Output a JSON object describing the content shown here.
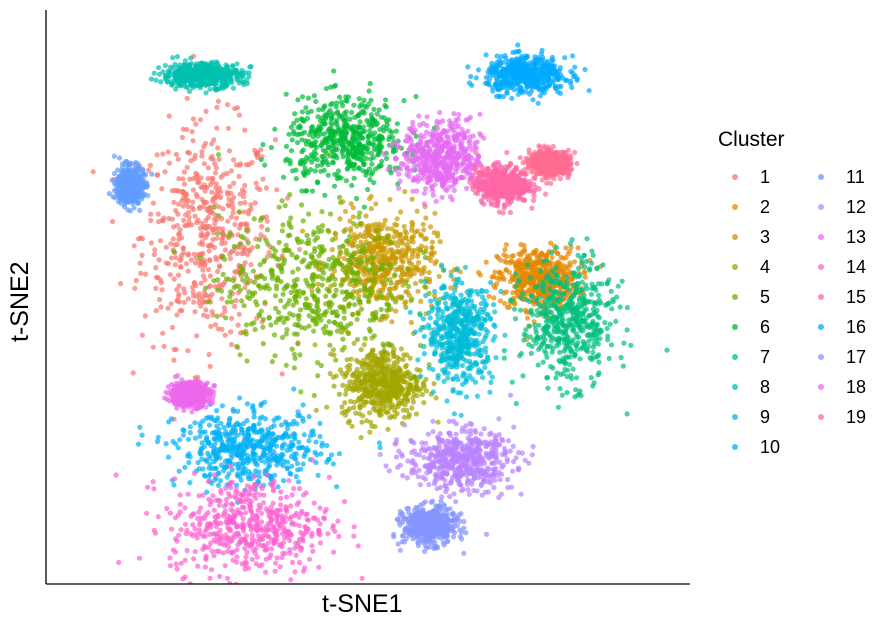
{
  "chart_data": {
    "type": "scatter",
    "title": "",
    "xlabel": "t-SNE1",
    "ylabel": "t-SNE2",
    "grid": false,
    "legend_position": "right",
    "legend_title": "Cluster",
    "xlim": [
      -50,
      50
    ],
    "ylim": [
      -50,
      50
    ],
    "series": [
      {
        "name": "1",
        "color": "#F8766D",
        "center": [
          -27,
          11
        ],
        "spread": [
          10,
          18
        ]
      },
      {
        "name": "2",
        "color": "#E58700",
        "center": [
          28,
          3
        ],
        "spread": [
          6,
          5
        ]
      },
      {
        "name": "3",
        "color": "#C99800",
        "center": [
          2,
          6
        ],
        "spread": [
          8,
          8
        ]
      },
      {
        "name": "4",
        "color": "#A3A500",
        "center": [
          2,
          -16
        ],
        "spread": [
          6,
          6
        ]
      },
      {
        "name": "5",
        "color": "#6BB100",
        "center": [
          -10,
          2
        ],
        "spread": [
          14,
          12
        ]
      },
      {
        "name": "6",
        "color": "#00BA38",
        "center": [
          -4,
          28
        ],
        "spread": [
          9,
          7
        ]
      },
      {
        "name": "7",
        "color": "#00BF7D",
        "center": [
          33,
          -5
        ],
        "spread": [
          7,
          10
        ]
      },
      {
        "name": "8",
        "color": "#00C0AF",
        "center": [
          -28,
          40
        ],
        "spread": [
          6,
          2
        ]
      },
      {
        "name": "9",
        "color": "#00BCD8",
        "center": [
          15,
          -7
        ],
        "spread": [
          5,
          8
        ]
      },
      {
        "name": "10",
        "color": "#00B0F6",
        "center": [
          -20,
          -28
        ],
        "spread": [
          11,
          6
        ]
      },
      {
        "name": "11",
        "color": "#619CFF",
        "center": [
          -40,
          20
        ],
        "spread": [
          2,
          3
        ]
      },
      {
        "name": "12",
        "color": "#B983FF",
        "center": [
          15,
          -30
        ],
        "spread": [
          8,
          5
        ]
      },
      {
        "name": "13",
        "color": "#E76BF3",
        "center": [
          12,
          25
        ],
        "spread": [
          6,
          6
        ]
      },
      {
        "name": "14",
        "color": "#FD61D1",
        "center": [
          -20,
          -42
        ],
        "spread": [
          12,
          8
        ]
      },
      {
        "name": "15",
        "color": "#FF67A4",
        "center": [
          22,
          20
        ],
        "spread": [
          4,
          3
        ]
      },
      {
        "name": "16",
        "color": "#00A9FF",
        "center": [
          26,
          40
        ],
        "spread": [
          6,
          3
        ]
      },
      {
        "name": "17",
        "color": "#8494FF",
        "center": [
          10,
          -42
        ],
        "spread": [
          4,
          3
        ]
      },
      {
        "name": "18",
        "color": "#ED68ED",
        "center": [
          -30,
          -18
        ],
        "spread": [
          3,
          2
        ]
      },
      {
        "name": "19",
        "color": "#FF6C91",
        "center": [
          30,
          24
        ],
        "spread": [
          3,
          2
        ]
      }
    ]
  }
}
